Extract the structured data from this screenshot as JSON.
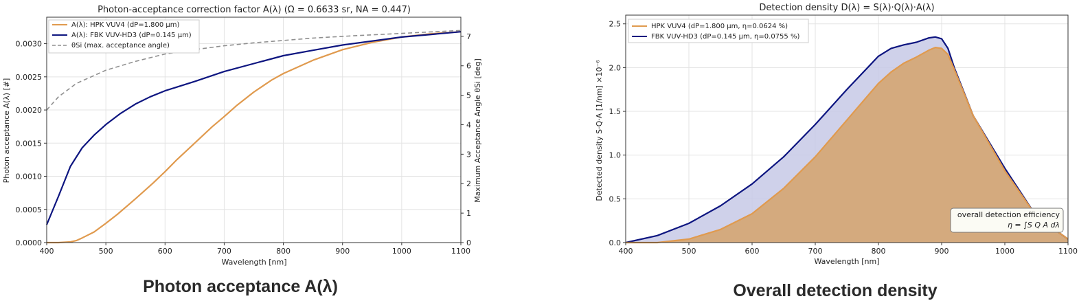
{
  "colors": {
    "hpk": "#e09a4e",
    "fbk": "#0d1580",
    "theta": "#8f8f8f",
    "fbk_fill": "#c7c9e6",
    "hpk_fill": "#d4a878"
  },
  "chart_data": [
    {
      "type": "line",
      "title": "Photon-acceptance correction factor  A(λ)   (Ω = 0.6633 sr,  NA = 0.447)",
      "caption": "Photon acceptance A(λ)",
      "xlabel": "Wavelength [nm]",
      "ylabel": "Photon acceptance  A(λ)  [#]",
      "y2label": "Maximum Acceptance Angle  θSi [deg]",
      "xlim": [
        400,
        1100
      ],
      "ylim": [
        0,
        0.0034
      ],
      "y2lim": [
        0,
        7.65
      ],
      "xticks": [
        400,
        500,
        600,
        700,
        800,
        900,
        1000,
        1100
      ],
      "yticks": [
        "0.0000",
        "0.0005",
        "0.0010",
        "0.0015",
        "0.0020",
        "0.0025",
        "0.0030"
      ],
      "y2ticks": [
        0,
        1,
        2,
        3,
        4,
        5,
        6,
        7
      ],
      "grid": true,
      "legend_position": "top-left",
      "series": [
        {
          "name": "A(λ): HPK VUV4  (dP=1.800 μm)",
          "axis": "left",
          "style": "solid",
          "color": "#e09a4e",
          "x": [
            400,
            420,
            440,
            450,
            460,
            480,
            500,
            520,
            550,
            580,
            600,
            620,
            650,
            680,
            700,
            720,
            750,
            780,
            800,
            850,
            900,
            950,
            1000,
            1050,
            1100
          ],
          "y": [
            0.0,
            0.0,
            1e-05,
            3e-05,
            7e-05,
            0.00016,
            0.00029,
            0.00043,
            0.00066,
            0.0009,
            0.00107,
            0.00125,
            0.0015,
            0.00175,
            0.0019,
            0.00206,
            0.00227,
            0.00245,
            0.00255,
            0.00275,
            0.00291,
            0.00302,
            0.0031,
            0.00315,
            0.00318
          ]
        },
        {
          "name": "A(λ): FBK VUV-HD3  (dP=0.145 μm)",
          "axis": "left",
          "style": "solid",
          "color": "#0d1580",
          "x": [
            400,
            420,
            440,
            460,
            480,
            500,
            525,
            550,
            575,
            600,
            650,
            700,
            750,
            800,
            850,
            900,
            950,
            1000,
            1050,
            1100
          ],
          "y": [
            0.00027,
            0.0007,
            0.00115,
            0.00143,
            0.00162,
            0.00178,
            0.00195,
            0.00209,
            0.0022,
            0.00229,
            0.00243,
            0.00258,
            0.0027,
            0.00282,
            0.0029,
            0.00298,
            0.00304,
            0.0031,
            0.00314,
            0.00318
          ]
        },
        {
          "name": "θSi (max. acceptance angle)",
          "axis": "right",
          "style": "dashed",
          "color": "#8f8f8f",
          "x": [
            400,
            420,
            450,
            500,
            550,
            600,
            650,
            700,
            750,
            800,
            850,
            900,
            950,
            1000,
            1050,
            1100
          ],
          "y": [
            4.5,
            4.95,
            5.4,
            5.85,
            6.15,
            6.4,
            6.55,
            6.68,
            6.78,
            6.86,
            6.94,
            7.0,
            7.05,
            7.1,
            7.15,
            7.2
          ]
        }
      ]
    },
    {
      "type": "area",
      "title": "Detection density  D(λ) = S(λ)·Q(λ)·A(λ)",
      "caption": "Overall detection density",
      "xlabel": "Wavelength [nm]",
      "ylabel": "Detected density  S·Q·A [1/nm] ×10⁻⁶",
      "xlim": [
        400,
        1100
      ],
      "ylim": [
        0,
        2.6
      ],
      "xticks": [
        400,
        500,
        600,
        700,
        800,
        900,
        1000,
        1100
      ],
      "yticks": [
        "0.0",
        "0.5",
        "1.0",
        "1.5",
        "2.0",
        "2.5"
      ],
      "grid": true,
      "legend_position": "top-left",
      "annotation": {
        "line1": "overall detection efficiency",
        "line2": "η = ∫S Q A dλ"
      },
      "series": [
        {
          "name": "FBK VUV-HD3  (dP=0.145 μm,  η=0.0755 %)",
          "color": "#0d1580",
          "fill": "#c7c9e6",
          "x": [
            400,
            450,
            500,
            550,
            600,
            650,
            700,
            750,
            800,
            820,
            840,
            860,
            880,
            890,
            900,
            910,
            920,
            950,
            1000,
            1050,
            1100
          ],
          "y": [
            0.0,
            0.08,
            0.22,
            0.42,
            0.67,
            0.98,
            1.35,
            1.75,
            2.13,
            2.22,
            2.26,
            2.29,
            2.34,
            2.35,
            2.33,
            2.22,
            2.0,
            1.45,
            0.85,
            0.3,
            0.04
          ]
        },
        {
          "name": "HPK VUV4  (dP=1.800 μm,  η=0.0624 %)",
          "color": "#e09a4e",
          "fill": "#d4a878",
          "x": [
            400,
            450,
            500,
            550,
            600,
            650,
            700,
            750,
            800,
            820,
            840,
            860,
            880,
            890,
            900,
            910,
            920,
            950,
            1000,
            1050,
            1100
          ],
          "y": [
            0.0,
            0.0,
            0.04,
            0.15,
            0.33,
            0.62,
            0.98,
            1.4,
            1.82,
            1.95,
            2.05,
            2.12,
            2.2,
            2.23,
            2.22,
            2.15,
            1.98,
            1.45,
            0.82,
            0.3,
            0.04
          ]
        }
      ]
    }
  ]
}
